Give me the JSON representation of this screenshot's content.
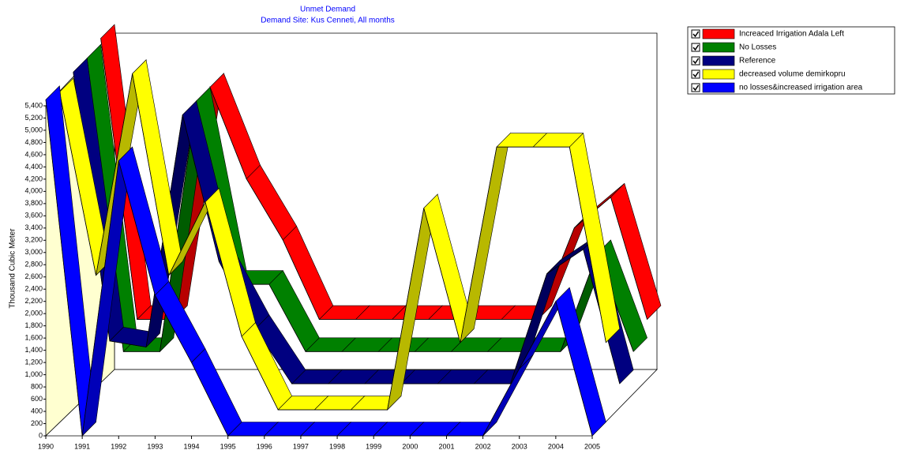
{
  "chart_data": {
    "type": "ribbon3d",
    "title": "Unmet Demand",
    "subtitle": "Demand Site: Kus Cenneti,  All months",
    "y_label": "Thousand Cubic Meter",
    "categories": [
      "1990",
      "1991",
      "1992",
      "1993",
      "1994",
      "1995",
      "1996",
      "1997",
      "1998",
      "1999",
      "2000",
      "2001",
      "2002",
      "2003",
      "2004",
      "2005"
    ],
    "series": [
      {
        "name": "Increaced Irrigation Adala Left",
        "color": "#ff0000",
        "values": [
          5600,
          1000,
          1000,
          4800,
          3300,
          2300,
          1000,
          1000,
          1000,
          1000,
          1000,
          1000,
          1000,
          2500,
          3000,
          1000
        ]
      },
      {
        "name": "No Losses",
        "color": "#008000",
        "values": [
          5500,
          700,
          700,
          4800,
          1800,
          1800,
          700,
          700,
          700,
          700,
          700,
          700,
          700,
          700,
          2300,
          700
        ]
      },
      {
        "name": "Reference",
        "color": "#000080",
        "values": [
          5500,
          1100,
          1000,
          4800,
          2400,
          1300,
          400,
          400,
          400,
          400,
          400,
          400,
          400,
          2200,
          2600,
          400
        ]
      },
      {
        "name": "decreased volume demirkopru",
        "color": "#ffff00",
        "values": [
          5400,
          2400,
          5700,
          2400,
          3600,
          1400,
          200,
          200,
          200,
          200,
          3500,
          1300,
          4500,
          4500,
          4500,
          1300
        ]
      },
      {
        "name": "no losses&increased irrigation area",
        "color": "#0000ff",
        "values": [
          5500,
          0,
          4500,
          2300,
          1200,
          0,
          0,
          0,
          0,
          0,
          0,
          0,
          0,
          1100,
          2200,
          0
        ]
      }
    ],
    "ylim": [
      0,
      5400
    ],
    "yticks": [
      0,
      200,
      400,
      600,
      800,
      {
        "value": 1000,
        "label": "1,000"
      },
      {
        "value": 1200,
        "label": "1,200"
      },
      {
        "value": 1400,
        "label": "1,400"
      },
      {
        "value": 1600,
        "label": "1,600"
      },
      {
        "value": 1800,
        "label": "1,800"
      },
      {
        "value": 2000,
        "label": "2,000"
      },
      {
        "value": 2200,
        "label": "2,200"
      },
      {
        "value": 2400,
        "label": "2,400"
      },
      {
        "value": 2600,
        "label": "2,600"
      },
      {
        "value": 2800,
        "label": "2,800"
      },
      {
        "value": 3000,
        "label": "3,000"
      },
      {
        "value": 3200,
        "label": "3,200"
      },
      {
        "value": 3400,
        "label": "3,400"
      },
      {
        "value": 3600,
        "label": "3,600"
      },
      {
        "value": 3800,
        "label": "3,800"
      },
      {
        "value": 4000,
        "label": "4,000"
      },
      {
        "value": 4200,
        "label": "4,200"
      },
      {
        "value": 4400,
        "label": "4,400"
      },
      {
        "value": 4600,
        "label": "4,600"
      },
      {
        "value": 4800,
        "label": "4,800"
      },
      {
        "value": 5000,
        "label": "5,000"
      },
      {
        "value": 5200,
        "label": "5,200"
      },
      {
        "value": 5400,
        "label": "5,400"
      }
    ],
    "legend": "top-right"
  }
}
